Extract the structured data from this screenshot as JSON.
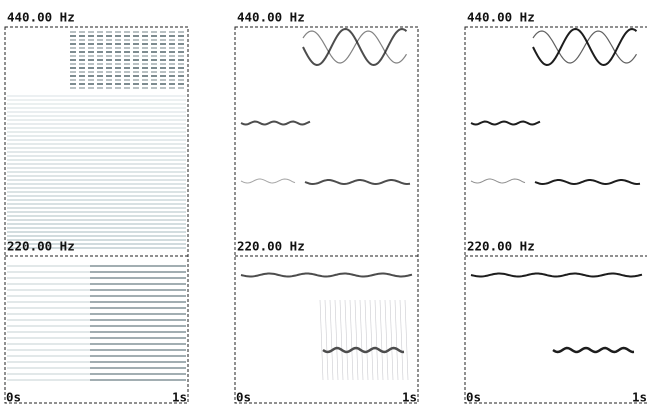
{
  "panels": [
    {
      "top_label": "440.00 Hz",
      "mid_label": "220.00 Hz",
      "start_label": "0s",
      "end_label": "1s"
    },
    {
      "top_label": "440.00 Hz",
      "mid_label": "220.00 Hz",
      "start_label": "0s",
      "end_label": "1s"
    },
    {
      "top_label": "440.00 Hz",
      "mid_label": "220.00 Hz",
      "start_label": "0s",
      "end_label": "1s"
    }
  ]
}
